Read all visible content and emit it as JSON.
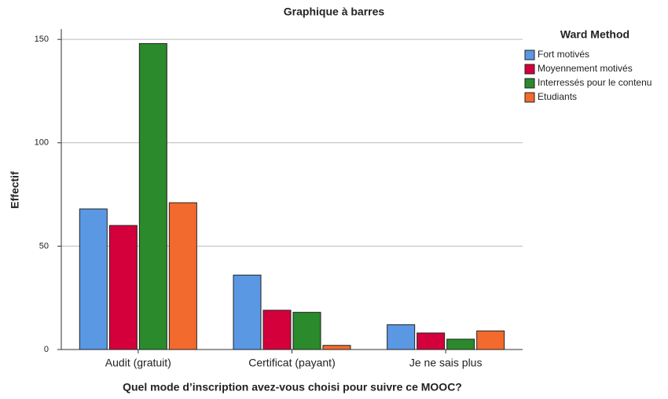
{
  "chart_data": {
    "type": "bar",
    "title": "Graphique à barres",
    "x_label": "Quel mode d’inscription avez-vous choisi pour suivre ce MOOC?",
    "y_label": "Effectif",
    "categories": [
      "Audit (gratuit)",
      "Certificat (payant)",
      "Je ne sais plus"
    ],
    "series": [
      {
        "name": "Fort motivés",
        "color": "#5a98e4",
        "values": [
          68,
          36,
          12
        ]
      },
      {
        "name": "Moyennement motivés",
        "color": "#d4003b",
        "values": [
          60,
          19,
          8
        ]
      },
      {
        "name": "Interressés pour le contenu",
        "color": "#2b8a2b",
        "values": [
          148,
          18,
          5
        ]
      },
      {
        "name": "Etudiants",
        "color": "#f26a2e",
        "values": [
          71,
          2,
          9
        ]
      }
    ],
    "legend_title": "Ward Method",
    "legend_position": "right",
    "ylim": [
      0,
      155
    ],
    "yticks": [
      0,
      50,
      100,
      150
    ],
    "grid": true
  }
}
